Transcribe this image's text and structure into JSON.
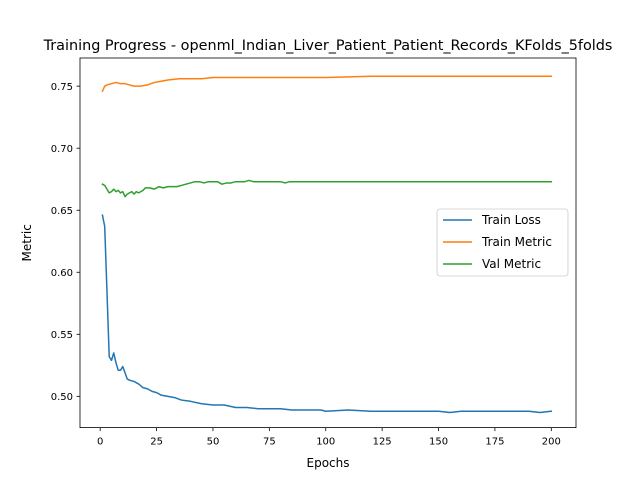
{
  "chart_data": {
    "type": "line",
    "title": "Training Progress - openml_Indian_Liver_Patient_Patient_Records_KFolds_5folds",
    "xlabel": "Epochs",
    "ylabel": "Metric",
    "xlim": [
      -8.95,
      210.95
    ],
    "ylim": [
      0.4748,
      0.7727
    ],
    "xticks": [
      0,
      25,
      50,
      75,
      100,
      125,
      150,
      175,
      200
    ],
    "yticks": [
      0.5,
      0.55,
      0.6,
      0.65,
      0.7,
      0.75
    ],
    "ytick_labels": [
      "0.50",
      "0.55",
      "0.60",
      "0.65",
      "0.70",
      "0.75"
    ],
    "grid": false,
    "legend_position": "center-right",
    "series": [
      {
        "name": "Train Loss",
        "color": "#1f77b4",
        "x": [
          1,
          2,
          3,
          4,
          5,
          6,
          7,
          8,
          9,
          10,
          11,
          12,
          13,
          15,
          17,
          19,
          21,
          23,
          25,
          27,
          30,
          33,
          36,
          40,
          45,
          50,
          55,
          60,
          65,
          70,
          75,
          80,
          85,
          90,
          95,
          98,
          100,
          110,
          120,
          130,
          140,
          150,
          155,
          160,
          170,
          180,
          190,
          195,
          200
        ],
        "y": [
          0.646,
          0.637,
          0.585,
          0.532,
          0.529,
          0.535,
          0.527,
          0.521,
          0.521,
          0.524,
          0.519,
          0.514,
          0.513,
          0.512,
          0.51,
          0.507,
          0.506,
          0.504,
          0.503,
          0.501,
          0.5,
          0.499,
          0.497,
          0.496,
          0.494,
          0.493,
          0.493,
          0.491,
          0.491,
          0.49,
          0.49,
          0.49,
          0.489,
          0.489,
          0.489,
          0.489,
          0.488,
          0.489,
          0.488,
          0.488,
          0.488,
          0.488,
          0.487,
          0.488,
          0.488,
          0.488,
          0.488,
          0.487,
          0.488
        ]
      },
      {
        "name": "Train Metric",
        "color": "#ff7f0e",
        "x": [
          1,
          2,
          3,
          5,
          7,
          9,
          11,
          13,
          15,
          18,
          21,
          24,
          27,
          30,
          35,
          40,
          45,
          50,
          55,
          60,
          65,
          70,
          75,
          80,
          90,
          100,
          120,
          140,
          160,
          180,
          200
        ],
        "y": [
          0.746,
          0.75,
          0.751,
          0.752,
          0.753,
          0.752,
          0.752,
          0.751,
          0.75,
          0.75,
          0.751,
          0.753,
          0.754,
          0.755,
          0.756,
          0.756,
          0.756,
          0.757,
          0.757,
          0.757,
          0.757,
          0.757,
          0.757,
          0.757,
          0.757,
          0.757,
          0.758,
          0.758,
          0.758,
          0.758,
          0.758
        ]
      },
      {
        "name": "Val Metric",
        "color": "#2ca02c",
        "x": [
          1,
          2,
          3,
          4,
          5,
          6,
          7,
          8,
          9,
          10,
          11,
          12,
          13,
          14,
          15,
          16,
          17,
          18,
          19,
          20,
          22,
          24,
          26,
          28,
          30,
          32,
          34,
          36,
          38,
          40,
          42,
          44,
          46,
          48,
          50,
          52,
          54,
          56,
          58,
          60,
          62,
          64,
          66,
          68,
          70,
          72,
          74,
          76,
          78,
          80,
          82,
          84,
          86,
          90,
          100,
          120,
          140,
          160,
          180,
          200
        ],
        "y": [
          0.671,
          0.67,
          0.667,
          0.664,
          0.665,
          0.667,
          0.665,
          0.666,
          0.664,
          0.665,
          0.661,
          0.663,
          0.664,
          0.665,
          0.663,
          0.665,
          0.664,
          0.665,
          0.666,
          0.668,
          0.668,
          0.667,
          0.669,
          0.668,
          0.669,
          0.669,
          0.669,
          0.67,
          0.671,
          0.672,
          0.673,
          0.673,
          0.672,
          0.673,
          0.673,
          0.673,
          0.671,
          0.672,
          0.672,
          0.673,
          0.673,
          0.673,
          0.674,
          0.673,
          0.673,
          0.673,
          0.673,
          0.673,
          0.673,
          0.673,
          0.672,
          0.673,
          0.673,
          0.673,
          0.673,
          0.673,
          0.673,
          0.673,
          0.673,
          0.673
        ]
      }
    ]
  }
}
